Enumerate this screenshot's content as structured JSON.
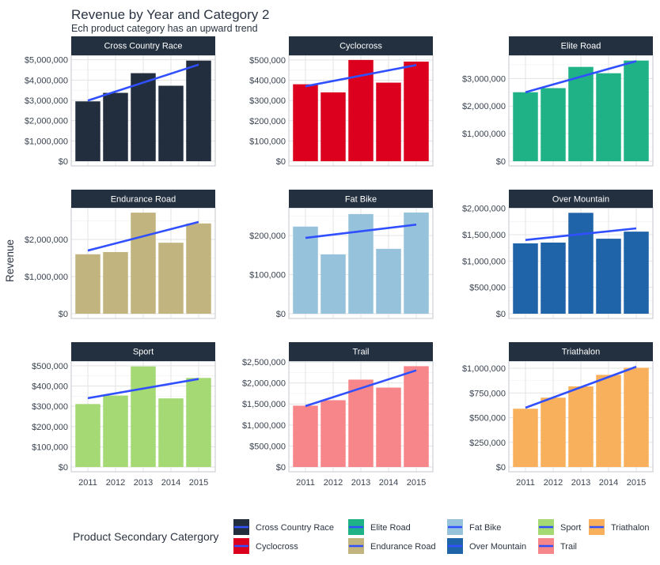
{
  "chart_data": {
    "type": "bar",
    "title": "Revenue by Year and Category 2",
    "subtitle": "Ech product category has an upward trend",
    "ylabel": "Revenue",
    "xlabel": "",
    "categories": [
      "2011",
      "2012",
      "2013",
      "2014",
      "2015"
    ],
    "grid": true,
    "trend_color": "#3050ff",
    "legend": {
      "title": "Product Secondary Catergory",
      "position": "bottom",
      "items": [
        "Cross Country Race",
        "Cyclocross",
        "Elite Road",
        "Endurance Road",
        "Fat Bike",
        "Over Mountain",
        "Sport",
        "Trail",
        "Triathalon"
      ]
    },
    "panels": [
      {
        "name": "Cross Country Race",
        "color": "#222e3e",
        "values": [
          2950000,
          3370000,
          4340000,
          3720000,
          4960000
        ],
        "trend": [
          2990000,
          4760000
        ],
        "ylim": [
          0,
          5220000
        ],
        "ticks": [
          0,
          1000000,
          2000000,
          3000000,
          4000000,
          5000000
        ],
        "tick_labels": [
          "$0",
          "$1,000,000",
          "$2,000,000",
          "$3,000,000",
          "$4,000,000",
          "$5,000,000"
        ]
      },
      {
        "name": "Cyclocross",
        "color": "#dc001e",
        "values": [
          380000,
          340000,
          500000,
          388000,
          492000
        ],
        "trend": [
          370000,
          475000
        ],
        "ylim": [
          0,
          523000
        ],
        "ticks": [
          0,
          100000,
          200000,
          300000,
          400000,
          500000
        ],
        "tick_labels": [
          "$0",
          "$100,000",
          "$200,000",
          "$300,000",
          "$400,000",
          "$500,000"
        ]
      },
      {
        "name": "Elite Road",
        "color": "#20b287",
        "values": [
          2500000,
          2650000,
          3420000,
          3190000,
          3650000
        ],
        "trend": [
          2500000,
          3630000
        ],
        "ylim": [
          0,
          3840000
        ],
        "ticks": [
          0,
          1000000,
          2000000,
          3000000
        ],
        "tick_labels": [
          "$0",
          "$1,000,000",
          "$2,000,000",
          "$3,000,000"
        ]
      },
      {
        "name": "Endurance Road",
        "color": "#c2b47f",
        "values": [
          1600000,
          1660000,
          2720000,
          1910000,
          2430000
        ],
        "trend": [
          1700000,
          2470000
        ],
        "ylim": [
          0,
          2850000
        ],
        "ticks": [
          0,
          1000000,
          2000000
        ],
        "tick_labels": [
          "$0",
          "$1,000,000",
          "$2,000,000"
        ]
      },
      {
        "name": "Fat Bike",
        "color": "#96c2db",
        "values": [
          223000,
          152000,
          255000,
          166000,
          259000
        ],
        "trend": [
          194000,
          228000
        ],
        "ylim": [
          0,
          271000
        ],
        "ticks": [
          0,
          100000,
          200000
        ],
        "tick_labels": [
          "$0",
          "$100,000",
          "$200,000"
        ]
      },
      {
        "name": "Over Mountain",
        "color": "#1f64a8",
        "values": [
          1335000,
          1350000,
          1915000,
          1424000,
          1558000
        ],
        "trend": [
          1400000,
          1620000
        ],
        "ylim": [
          0,
          2010000
        ],
        "ticks": [
          0,
          500000,
          1000000,
          1500000,
          2000000
        ],
        "tick_labels": [
          "$0",
          "$500,000",
          "$1,000,000",
          "$1,500,000",
          "$2,000,000"
        ]
      },
      {
        "name": "Sport",
        "color": "#a4d974",
        "values": [
          311000,
          353000,
          497000,
          339000,
          440000
        ],
        "trend": [
          340000,
          435000
        ],
        "ylim": [
          0,
          523000
        ],
        "ticks": [
          0,
          100000,
          200000,
          300000,
          400000,
          500000
        ],
        "tick_labels": [
          "$0",
          "$100,000",
          "$200,000",
          "$300,000",
          "$400,000",
          "$500,000"
        ]
      },
      {
        "name": "Trail",
        "color": "#f7868a",
        "values": [
          1460000,
          1590000,
          2080000,
          1890000,
          2400000
        ],
        "trend": [
          1450000,
          2300000
        ],
        "ylim": [
          0,
          2520000
        ],
        "ticks": [
          0,
          500000,
          1000000,
          1500000,
          2000000,
          2500000
        ],
        "tick_labels": [
          "$0",
          "$500,000",
          "$1,000,000",
          "$1,500,000",
          "$2,000,000",
          "$2,500,000"
        ]
      },
      {
        "name": "Triathalon",
        "color": "#f9b05c",
        "values": [
          590000,
          702000,
          816000,
          933000,
          1005000
        ],
        "trend": [
          600000,
          1015000
        ],
        "ylim": [
          0,
          1072000
        ],
        "ticks": [
          0,
          250000,
          500000,
          750000,
          1000000
        ],
        "tick_labels": [
          "$0",
          "$250,000",
          "$500,000",
          "$750,000",
          "$1,000,000"
        ]
      }
    ]
  }
}
